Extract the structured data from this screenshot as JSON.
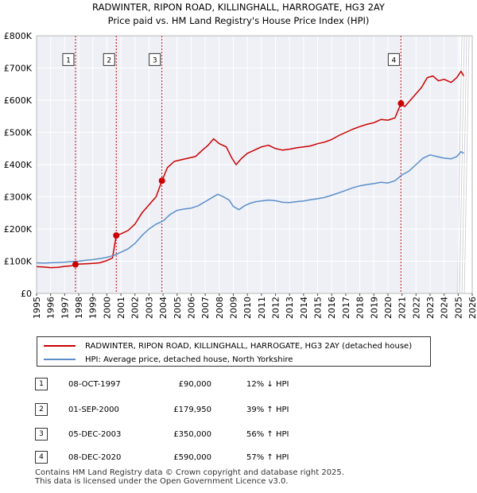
{
  "chart_data": {
    "type": "line",
    "title": "RADWINTER, RIPON ROAD, KILLINGHALL, HARROGATE, HG3 2AY",
    "subtitle": "Price paid vs. HM Land Registry's House Price Index (HPI)",
    "xlim": [
      1995,
      2026
    ],
    "ylim": [
      0,
      800000
    ],
    "x_ticks": [
      "1995",
      "1996",
      "1997",
      "1998",
      "1999",
      "2000",
      "2001",
      "2002",
      "2003",
      "2004",
      "2005",
      "2006",
      "2007",
      "2008",
      "2009",
      "2010",
      "2011",
      "2012",
      "2013",
      "2014",
      "2015",
      "2016",
      "2017",
      "2018",
      "2019",
      "2020",
      "2021",
      "2022",
      "2023",
      "2024",
      "2025",
      "2026"
    ],
    "y_ticks": [
      {
        "value": 0,
        "label": "£0"
      },
      {
        "value": 100000,
        "label": "£100K"
      },
      {
        "value": 200000,
        "label": "£200K"
      },
      {
        "value": 300000,
        "label": "£300K"
      },
      {
        "value": 400000,
        "label": "£400K"
      },
      {
        "value": 500000,
        "label": "£500K"
      },
      {
        "value": 600000,
        "label": "£600K"
      },
      {
        "value": 700000,
        "label": "£700K"
      },
      {
        "value": 800000,
        "label": "£800K"
      }
    ],
    "forecast_start": 2025.1,
    "series": [
      {
        "name": "RADWINTER, RIPON ROAD, KILLINGHALL, HARROGATE, HG3 2AY (detached house)",
        "color": "#cc0000",
        "points": [
          [
            1995.0,
            83000
          ],
          [
            1995.5,
            82000
          ],
          [
            1996.0,
            80000
          ],
          [
            1996.5,
            81000
          ],
          [
            1997.0,
            84000
          ],
          [
            1997.5,
            86000
          ],
          [
            1997.77,
            90000
          ],
          [
            1998.0,
            91000
          ],
          [
            1998.5,
            92000
          ],
          [
            1999.0,
            93000
          ],
          [
            1999.5,
            95000
          ],
          [
            2000.0,
            102000
          ],
          [
            2000.4,
            110000
          ],
          [
            2000.67,
            179950
          ],
          [
            2001.0,
            185000
          ],
          [
            2001.5,
            195000
          ],
          [
            2002.0,
            215000
          ],
          [
            2002.5,
            250000
          ],
          [
            2003.0,
            275000
          ],
          [
            2003.5,
            300000
          ],
          [
            2003.92,
            350000
          ],
          [
            2004.3,
            390000
          ],
          [
            2004.8,
            410000
          ],
          [
            2005.3,
            415000
          ],
          [
            2005.8,
            420000
          ],
          [
            2006.3,
            425000
          ],
          [
            2006.8,
            445000
          ],
          [
            2007.2,
            460000
          ],
          [
            2007.6,
            480000
          ],
          [
            2008.0,
            465000
          ],
          [
            2008.5,
            455000
          ],
          [
            2008.9,
            420000
          ],
          [
            2009.2,
            400000
          ],
          [
            2009.6,
            420000
          ],
          [
            2010.0,
            435000
          ],
          [
            2010.5,
            445000
          ],
          [
            2011.0,
            455000
          ],
          [
            2011.5,
            460000
          ],
          [
            2012.0,
            450000
          ],
          [
            2012.5,
            445000
          ],
          [
            2013.0,
            448000
          ],
          [
            2013.5,
            452000
          ],
          [
            2014.0,
            455000
          ],
          [
            2014.5,
            458000
          ],
          [
            2015.0,
            465000
          ],
          [
            2015.5,
            470000
          ],
          [
            2016.0,
            478000
          ],
          [
            2016.5,
            490000
          ],
          [
            2017.0,
            500000
          ],
          [
            2017.5,
            510000
          ],
          [
            2018.0,
            518000
          ],
          [
            2018.5,
            525000
          ],
          [
            2019.0,
            530000
          ],
          [
            2019.5,
            540000
          ],
          [
            2020.0,
            538000
          ],
          [
            2020.5,
            545000
          ],
          [
            2020.93,
            590000
          ],
          [
            2021.2,
            580000
          ],
          [
            2021.6,
            600000
          ],
          [
            2022.0,
            620000
          ],
          [
            2022.4,
            640000
          ],
          [
            2022.8,
            670000
          ],
          [
            2023.2,
            675000
          ],
          [
            2023.6,
            660000
          ],
          [
            2024.0,
            665000
          ],
          [
            2024.5,
            655000
          ],
          [
            2024.9,
            670000
          ],
          [
            2025.2,
            690000
          ],
          [
            2025.4,
            675000
          ]
        ]
      },
      {
        "name": "HPI: Average price, detached house, North Yorkshire",
        "color": "#5b8ec9",
        "points": [
          [
            1995.0,
            95000
          ],
          [
            1995.5,
            94000
          ],
          [
            1996.0,
            95000
          ],
          [
            1996.5,
            96000
          ],
          [
            1997.0,
            97000
          ],
          [
            1997.5,
            99000
          ],
          [
            1998.0,
            100000
          ],
          [
            1998.5,
            103000
          ],
          [
            1999.0,
            105000
          ],
          [
            1999.5,
            108000
          ],
          [
            2000.0,
            112000
          ],
          [
            2000.5,
            118000
          ],
          [
            2001.0,
            128000
          ],
          [
            2001.5,
            138000
          ],
          [
            2002.0,
            155000
          ],
          [
            2002.5,
            180000
          ],
          [
            2003.0,
            200000
          ],
          [
            2003.5,
            215000
          ],
          [
            2004.0,
            225000
          ],
          [
            2004.5,
            245000
          ],
          [
            2005.0,
            258000
          ],
          [
            2005.5,
            262000
          ],
          [
            2006.0,
            265000
          ],
          [
            2006.5,
            272000
          ],
          [
            2007.0,
            285000
          ],
          [
            2007.5,
            298000
          ],
          [
            2007.9,
            308000
          ],
          [
            2008.3,
            300000
          ],
          [
            2008.7,
            290000
          ],
          [
            2009.0,
            270000
          ],
          [
            2009.4,
            260000
          ],
          [
            2009.8,
            272000
          ],
          [
            2010.2,
            280000
          ],
          [
            2010.6,
            285000
          ],
          [
            2011.0,
            287000
          ],
          [
            2011.5,
            290000
          ],
          [
            2012.0,
            288000
          ],
          [
            2012.5,
            283000
          ],
          [
            2013.0,
            282000
          ],
          [
            2013.5,
            285000
          ],
          [
            2014.0,
            287000
          ],
          [
            2014.5,
            291000
          ],
          [
            2015.0,
            294000
          ],
          [
            2015.5,
            298000
          ],
          [
            2016.0,
            305000
          ],
          [
            2016.5,
            312000
          ],
          [
            2017.0,
            320000
          ],
          [
            2017.5,
            328000
          ],
          [
            2018.0,
            334000
          ],
          [
            2018.5,
            338000
          ],
          [
            2019.0,
            341000
          ],
          [
            2019.5,
            345000
          ],
          [
            2020.0,
            343000
          ],
          [
            2020.5,
            350000
          ],
          [
            2021.0,
            368000
          ],
          [
            2021.5,
            380000
          ],
          [
            2022.0,
            400000
          ],
          [
            2022.5,
            420000
          ],
          [
            2023.0,
            430000
          ],
          [
            2023.5,
            425000
          ],
          [
            2024.0,
            420000
          ],
          [
            2024.5,
            418000
          ],
          [
            2024.9,
            425000
          ],
          [
            2025.2,
            440000
          ],
          [
            2025.4,
            435000
          ]
        ]
      }
    ],
    "sales": [
      {
        "label": "1",
        "x": 1997.77,
        "price": 90000
      },
      {
        "label": "2",
        "x": 2000.67,
        "price": 179950
      },
      {
        "label": "3",
        "x": 2003.92,
        "price": 350000
      },
      {
        "label": "4",
        "x": 2020.93,
        "price": 590000
      }
    ],
    "marker_label_value": 725000
  },
  "legend": {
    "property_label": "RADWINTER, RIPON ROAD, KILLINGHALL, HARROGATE, HG3 2AY (detached house)",
    "hpi_label": "HPI: Average price, detached house, North Yorkshire",
    "property_color": "#cc0000",
    "hpi_color": "#5b8ec9"
  },
  "sales_table": [
    {
      "num": "1",
      "date": "08-OCT-1997",
      "price": "£90,000",
      "hpi": "12% ↓ HPI"
    },
    {
      "num": "2",
      "date": "01-SEP-2000",
      "price": "£179,950",
      "hpi": "39% ↑ HPI"
    },
    {
      "num": "3",
      "date": "05-DEC-2003",
      "price": "£350,000",
      "hpi": "56% ↑ HPI"
    },
    {
      "num": "4",
      "date": "08-DEC-2020",
      "price": "£590,000",
      "hpi": "57% ↑ HPI"
    }
  ],
  "footer": {
    "line1": "Contains HM Land Registry data © Crown copyright and database right 2025.",
    "line2": "This data is licensed under the Open Government Licence v3.0."
  }
}
